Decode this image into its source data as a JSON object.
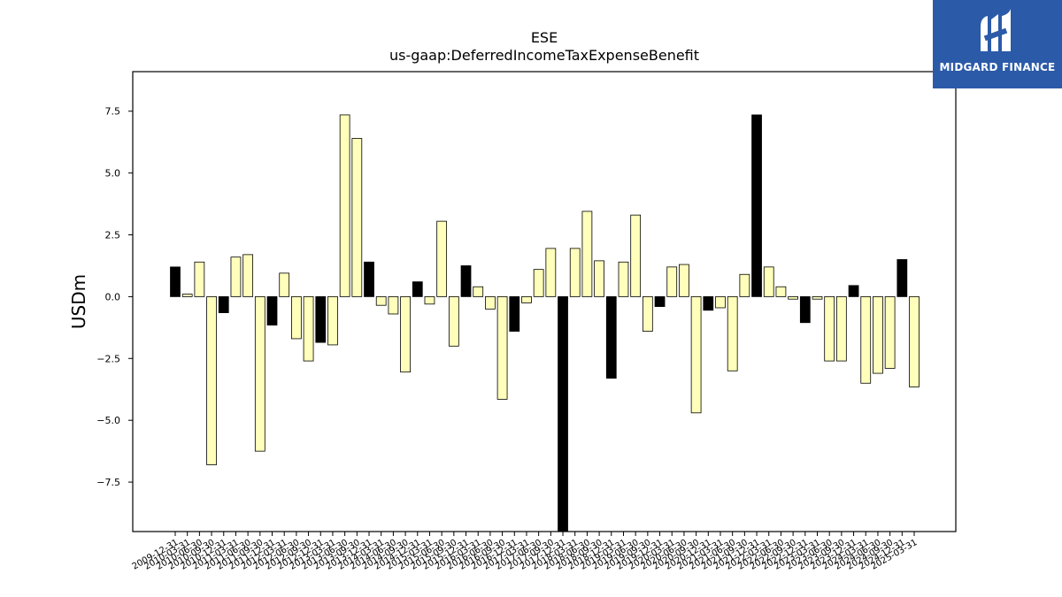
{
  "chart_data": {
    "type": "bar",
    "title": "ESE",
    "subtitle": "us-gaap:DeferredIncomeTaxExpenseBenefit",
    "xlabel": "",
    "ylabel": "USDm",
    "ylim": [
      -9.5,
      9.1
    ],
    "yticks": [
      -7.5,
      -5.0,
      -2.5,
      0.0,
      2.5,
      5.0,
      7.5
    ],
    "ytick_labels": [
      "−7.5",
      "−5.0",
      "−2.5",
      "0.0",
      "2.5",
      "5.0",
      "7.5"
    ],
    "grid": false,
    "legend": "none",
    "colors": {
      "annual": "#000000",
      "quarterly": "#ffffbb",
      "edge": "#000000"
    },
    "categories": [
      "2009-12-31",
      "2010-03-31",
      "2010-06-30",
      "2010-09-30",
      "2010-12-31",
      "2011-03-31",
      "2011-06-30",
      "2011-09-30",
      "2011-12-31",
      "2012-03-31",
      "2012-06-30",
      "2012-09-30",
      "2012-12-31",
      "2013-03-31",
      "2013-06-30",
      "2013-09-30",
      "2013-12-31",
      "2014-03-31",
      "2014-06-30",
      "2014-09-30",
      "2014-12-31",
      "2015-03-31",
      "2015-06-30",
      "2015-09-30",
      "2015-12-31",
      "2016-03-31",
      "2016-06-30",
      "2016-09-30",
      "2016-12-31",
      "2017-03-31",
      "2017-06-30",
      "2017-09-30",
      "2017-12-31",
      "2018-03-31",
      "2018-06-30",
      "2018-09-30",
      "2018-12-31",
      "2019-03-31",
      "2019-06-30",
      "2019-09-30",
      "2019-12-31",
      "2020-03-31",
      "2020-06-30",
      "2020-09-30",
      "2020-12-31",
      "2021-03-31",
      "2021-06-30",
      "2021-09-30",
      "2021-12-31",
      "2022-03-31",
      "2022-06-30",
      "2022-09-30",
      "2022-12-31",
      "2023-03-31",
      "2023-06-30",
      "2023-09-30",
      "2023-12-31",
      "2024-03-31",
      "2024-06-30",
      "2024-09-30",
      "2024-12-31",
      "2025-03-31"
    ],
    "values": [
      1.2,
      0.1,
      1.4,
      -6.8,
      -0.65,
      1.6,
      1.7,
      -6.25,
      -1.15,
      0.95,
      -1.7,
      -2.6,
      -1.85,
      -1.95,
      7.35,
      6.4,
      1.4,
      -0.35,
      -0.7,
      -3.05,
      0.6,
      -0.3,
      3.05,
      -2.0,
      1.25,
      0.4,
      -0.5,
      -4.15,
      -1.4,
      -0.25,
      1.1,
      1.95,
      -10.0,
      1.95,
      3.45,
      1.45,
      -3.3,
      1.4,
      3.3,
      -1.4,
      -0.4,
      1.2,
      1.3,
      -4.7,
      -0.55,
      -0.45,
      -3.0,
      0.9,
      7.35,
      1.2,
      0.4,
      -0.1,
      -1.05,
      -0.1,
      -2.6,
      -2.6,
      0.45,
      -3.5,
      -3.1,
      -2.9,
      1.5,
      -3.65
    ],
    "is_annual": [
      true,
      false,
      false,
      false,
      true,
      false,
      false,
      false,
      true,
      false,
      false,
      false,
      true,
      false,
      false,
      false,
      true,
      false,
      false,
      false,
      true,
      false,
      false,
      false,
      true,
      false,
      false,
      false,
      true,
      false,
      false,
      false,
      true,
      false,
      false,
      false,
      true,
      false,
      false,
      false,
      true,
      false,
      false,
      false,
      true,
      false,
      false,
      false,
      true,
      false,
      false,
      false,
      true,
      false,
      false,
      false,
      true,
      false,
      false,
      false,
      true,
      false
    ]
  },
  "logo": {
    "text": "MIDGARD FINANCE",
    "icon": "midgard-logo-icon"
  }
}
